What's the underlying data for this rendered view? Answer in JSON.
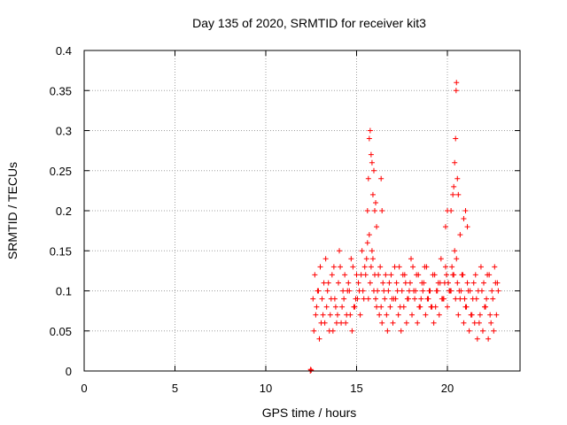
{
  "chart_data": {
    "type": "scatter",
    "title": "Day 135 of 2020, SRMTID for receiver kit3",
    "xlabel": "GPS time / hours",
    "ylabel": "SRMTID / TECUs",
    "xlim": [
      0,
      24
    ],
    "ylim": [
      0,
      0.4
    ],
    "xticks": [
      0,
      5,
      10,
      15,
      20
    ],
    "yticks": [
      0,
      0.05,
      0.1,
      0.15,
      0.2,
      0.25,
      0.3,
      0.35,
      0.4
    ],
    "grid": true,
    "marker": "+",
    "color": "#ff0000",
    "series": [
      {
        "name": "SRMTID",
        "x": [
          12.45,
          12.47,
          12.5,
          12.6,
          12.75,
          12.9,
          13.05,
          13.2,
          13.35,
          13.5,
          13.65,
          13.8,
          13.95,
          14.1,
          14.25,
          14.4,
          14.55,
          14.7,
          14.85,
          15.0,
          15.15,
          15.3,
          15.45,
          15.6,
          15.75,
          15.9,
          16.05,
          16.2,
          16.35,
          16.5,
          16.65,
          16.8,
          16.95,
          17.1,
          17.25,
          17.4,
          17.55,
          17.7,
          17.85,
          18.0,
          18.15,
          18.3,
          18.45,
          18.6,
          18.75,
          18.9,
          19.05,
          19.2,
          19.35,
          19.5,
          19.65,
          19.8,
          19.95,
          20.1,
          20.25,
          20.4,
          20.55,
          20.7,
          20.85,
          21.0,
          21.15,
          21.3,
          21.45,
          21.6,
          21.75,
          21.9,
          22.05,
          22.2,
          22.35,
          22.5,
          22.65,
          22.8,
          12.65,
          12.8,
          12.95,
          13.1,
          13.25,
          13.4,
          13.55,
          13.7,
          13.85,
          14.0,
          14.15,
          14.3,
          14.45,
          14.6,
          14.75,
          14.9,
          15.05,
          15.2,
          15.35,
          15.5,
          15.65,
          15.8,
          15.95,
          16.1,
          16.25,
          16.4,
          16.55,
          16.7,
          16.85,
          17.0,
          17.15,
          17.3,
          17.45,
          17.6,
          17.75,
          17.9,
          18.05,
          18.2,
          18.35,
          18.5,
          18.65,
          18.8,
          18.95,
          19.1,
          19.25,
          19.4,
          19.55,
          19.7,
          19.85,
          20.0,
          20.15,
          20.3,
          20.45,
          20.6,
          20.75,
          20.9,
          21.05,
          21.2,
          21.35,
          21.5,
          21.65,
          21.8,
          21.95,
          22.1,
          22.25,
          22.4,
          22.55,
          22.7,
          12.7,
          12.85,
          13.0,
          13.15,
          13.3,
          13.45,
          13.6,
          13.75,
          13.9,
          14.05,
          14.2,
          14.35,
          14.5,
          14.65,
          14.8,
          14.95,
          15.1,
          15.25,
          15.4,
          15.55,
          15.7,
          15.85,
          16.0,
          16.15,
          16.3,
          16.45,
          16.6,
          16.75,
          16.9,
          17.05,
          17.2,
          17.35,
          17.5,
          17.65,
          17.8,
          17.95,
          18.1,
          18.25,
          18.4,
          18.55,
          18.7,
          18.85,
          19.0,
          19.15,
          19.3,
          19.45,
          19.6,
          19.75,
          19.9,
          20.05,
          20.2,
          20.35,
          20.5,
          20.65,
          20.8,
          20.95,
          21.1,
          21.25,
          21.4,
          21.55,
          21.7,
          21.85,
          22.0,
          22.15,
          22.3,
          22.45,
          22.6,
          22.75,
          15.6,
          15.65,
          15.7,
          15.75,
          15.8,
          15.85,
          15.9,
          15.95,
          16.0,
          16.05,
          16.1,
          16.35,
          16.4,
          19.9,
          20.0,
          20.2,
          20.3,
          20.35,
          20.4,
          20.45,
          20.48,
          20.5,
          20.55,
          20.6,
          20.7,
          20.9,
          21.0,
          21.1
        ],
        "y": [
          0.0,
          0.002,
          0.001,
          0.09,
          0.07,
          0.1,
          0.06,
          0.11,
          0.08,
          0.05,
          0.12,
          0.09,
          0.07,
          0.13,
          0.1,
          0.06,
          0.11,
          0.14,
          0.08,
          0.12,
          0.1,
          0.15,
          0.13,
          0.16,
          0.11,
          0.14,
          0.09,
          0.12,
          0.08,
          0.1,
          0.07,
          0.11,
          0.09,
          0.13,
          0.1,
          0.08,
          0.12,
          0.11,
          0.09,
          0.14,
          0.1,
          0.12,
          0.08,
          0.11,
          0.13,
          0.09,
          0.1,
          0.12,
          0.08,
          0.11,
          0.14,
          0.09,
          0.12,
          0.1,
          0.13,
          0.15,
          0.11,
          0.09,
          0.12,
          0.08,
          0.1,
          0.07,
          0.11,
          0.09,
          0.06,
          0.1,
          0.08,
          0.12,
          0.07,
          0.09,
          0.11,
          0.1,
          0.05,
          0.08,
          0.04,
          0.09,
          0.06,
          0.1,
          0.07,
          0.05,
          0.08,
          0.11,
          0.06,
          0.09,
          0.07,
          0.1,
          0.05,
          0.08,
          0.09,
          0.07,
          0.1,
          0.12,
          0.09,
          0.13,
          0.1,
          0.08,
          0.07,
          0.06,
          0.09,
          0.05,
          0.08,
          0.06,
          0.09,
          0.07,
          0.05,
          0.08,
          0.06,
          0.1,
          0.07,
          0.09,
          0.06,
          0.08,
          0.1,
          0.07,
          0.09,
          0.08,
          0.06,
          0.1,
          0.07,
          0.09,
          0.11,
          0.08,
          0.1,
          0.12,
          0.09,
          0.07,
          0.1,
          0.06,
          0.08,
          0.05,
          0.07,
          0.06,
          0.04,
          0.07,
          0.05,
          0.08,
          0.04,
          0.06,
          0.05,
          0.07,
          0.12,
          0.1,
          0.13,
          0.07,
          0.14,
          0.11,
          0.09,
          0.13,
          0.06,
          0.15,
          0.08,
          0.12,
          0.1,
          0.07,
          0.13,
          0.09,
          0.11,
          0.12,
          0.09,
          0.14,
          0.17,
          0.15,
          0.12,
          0.1,
          0.13,
          0.11,
          0.12,
          0.1,
          0.12,
          0.09,
          0.11,
          0.13,
          0.1,
          0.12,
          0.09,
          0.11,
          0.13,
          0.1,
          0.12,
          0.09,
          0.11,
          0.13,
          0.1,
          0.08,
          0.12,
          0.1,
          0.11,
          0.09,
          0.13,
          0.11,
          0.1,
          0.12,
          0.14,
          0.1,
          0.12,
          0.09,
          0.11,
          0.1,
          0.09,
          0.12,
          0.1,
          0.13,
          0.11,
          0.09,
          0.12,
          0.1,
          0.13,
          0.11,
          0.2,
          0.24,
          0.29,
          0.3,
          0.27,
          0.26,
          0.22,
          0.25,
          0.2,
          0.21,
          0.18,
          0.24,
          0.2,
          0.18,
          0.2,
          0.2,
          0.22,
          0.23,
          0.26,
          0.29,
          0.35,
          0.36,
          0.24,
          0.22,
          0.17,
          0.19,
          0.2,
          0.18
        ]
      }
    ]
  }
}
